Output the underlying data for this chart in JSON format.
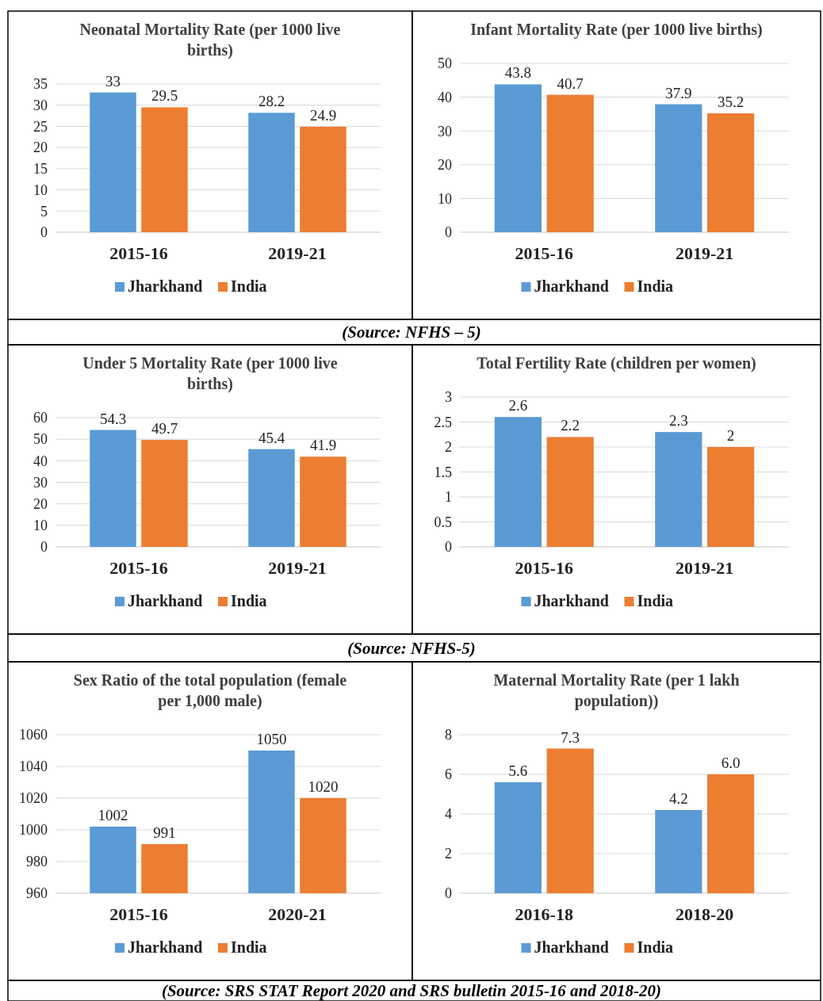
{
  "chart_data": [
    {
      "type": "bar",
      "title": "Neonatal Mortality Rate (per 1000 live births)",
      "categories": [
        "2015-16",
        "2019-21"
      ],
      "series": [
        {
          "name": "Jharkhand",
          "color": "#5b9bd5",
          "values": [
            33,
            28.2
          ]
        },
        {
          "name": "India",
          "color": "#ed7d31",
          "values": [
            29.5,
            24.9
          ]
        }
      ],
      "ylim": [
        0,
        35
      ],
      "yticks": [
        0,
        5,
        10,
        15,
        20,
        25,
        30,
        35
      ],
      "grid": "y",
      "legend": "bottom",
      "data_labels": true,
      "annotations": [
        "(Source: NFHS – 5)"
      ]
    },
    {
      "type": "bar",
      "title": "Infant Mortality Rate (per 1000 live births)",
      "categories": [
        "2015-16",
        "2019-21"
      ],
      "series": [
        {
          "name": "Jharkhand",
          "color": "#5b9bd5",
          "values": [
            43.8,
            37.9
          ]
        },
        {
          "name": "India",
          "color": "#ed7d31",
          "values": [
            40.7,
            35.2
          ]
        }
      ],
      "ylim": [
        0,
        50
      ],
      "yticks": [
        0,
        10,
        20,
        30,
        40,
        50
      ],
      "grid": "y",
      "legend": "bottom",
      "data_labels": true
    },
    {
      "type": "bar",
      "title": "Under 5 Mortality Rate (per 1000 live births)",
      "categories": [
        "2015-16",
        "2019-21"
      ],
      "series": [
        {
          "name": "Jharkhand",
          "color": "#5b9bd5",
          "values": [
            54.3,
            45.4
          ]
        },
        {
          "name": "India",
          "color": "#ed7d31",
          "values": [
            49.7,
            41.9
          ]
        }
      ],
      "ylim": [
        0,
        60
      ],
      "yticks": [
        0,
        10,
        20,
        30,
        40,
        50,
        60
      ],
      "grid": "y",
      "legend": "bottom",
      "data_labels": true,
      "annotations": [
        "(Source: NFHS-5)"
      ]
    },
    {
      "type": "bar",
      "title": "Total Fertility Rate (children per women)",
      "categories": [
        "2015-16",
        "2019-21"
      ],
      "series": [
        {
          "name": "Jharkhand",
          "color": "#5b9bd5",
          "values": [
            2.6,
            2.3
          ]
        },
        {
          "name": "India",
          "color": "#ed7d31",
          "values": [
            2.2,
            2
          ]
        }
      ],
      "ylim": [
        0,
        3
      ],
      "yticks": [
        0,
        0.5,
        1,
        1.5,
        2,
        2.5,
        3
      ],
      "grid": "y",
      "legend": "bottom",
      "data_labels": true
    },
    {
      "type": "bar",
      "title": "Sex Ratio of the total population (female per 1,000 male)",
      "categories": [
        "2015-16",
        "2020-21"
      ],
      "series": [
        {
          "name": "Jharkhand",
          "color": "#5b9bd5",
          "values": [
            1002,
            1050
          ]
        },
        {
          "name": "India",
          "color": "#ed7d31",
          "values": [
            991,
            1020
          ]
        }
      ],
      "ylim": [
        960,
        1060
      ],
      "yticks": [
        960,
        980,
        1000,
        1020,
        1040,
        1060
      ],
      "grid": "y",
      "legend": "bottom",
      "data_labels": true,
      "annotations": [
        "(Source: SRS STAT Report 2020 and SRS bulletin 2015-16 and 2018-20)"
      ]
    },
    {
      "type": "bar",
      "title": "Maternal Mortality Rate (per 1 lakh population))",
      "categories": [
        "2016-18",
        "2018-20"
      ],
      "series": [
        {
          "name": "Jharkhand",
          "color": "#5b9bd5",
          "values": [
            5.6,
            4.2
          ],
          "value_labels": [
            "5.6",
            "4.2"
          ]
        },
        {
          "name": "India",
          "color": "#ed7d31",
          "values": [
            7.3,
            6.0
          ],
          "value_labels": [
            "7.3",
            "6.0"
          ]
        }
      ],
      "ylim": [
        0,
        8
      ],
      "yticks": [
        0,
        2,
        4,
        6,
        8
      ],
      "grid": "y",
      "legend": "bottom"
    }
  ]
}
